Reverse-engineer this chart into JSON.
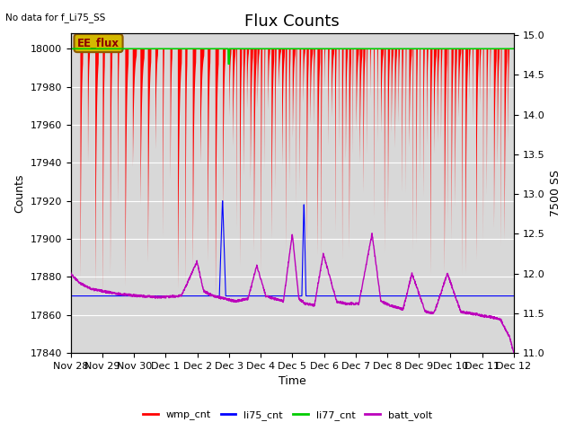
{
  "title": "Flux Counts",
  "top_left_text": "No data for f_Li75_SS",
  "xlabel": "Time",
  "ylabel_left": "Counts",
  "ylabel_right": "7500 SS",
  "annotation_box": "EE_flux",
  "ylim_left": [
    17840,
    18008
  ],
  "ylim_right": [
    11.0,
    15.02
  ],
  "yticks_left": [
    17840,
    17860,
    17880,
    17900,
    17920,
    17940,
    17960,
    17980,
    18000
  ],
  "yticks_right": [
    11.0,
    11.5,
    12.0,
    12.5,
    13.0,
    13.5,
    14.0,
    14.5,
    15.0
  ],
  "x_tick_labels": [
    "Nov 28",
    "Nov 29",
    "Nov 30",
    "Dec 1",
    "Dec 2",
    "Dec 3",
    "Dec 4",
    "Dec 5",
    "Dec 6",
    "Dec 7",
    "Dec 8",
    "Dec 9",
    "Dec 10",
    "Dec 11",
    "Dec 12"
  ],
  "plot_bg_color": "#d8d8d8",
  "wmp_color": "#ff0000",
  "li75_color": "#0000ff",
  "li77_color": "#00cc00",
  "batt_color": "#bb00bb",
  "legend_labels": [
    "wmp_cnt",
    "li75_cnt",
    "li77_cnt",
    "batt_volt"
  ],
  "title_fontsize": 13,
  "axis_fontsize": 9,
  "tick_fontsize": 8,
  "annotation_facecolor": "#d4b800",
  "annotation_edgecolor": "#8B5A00"
}
